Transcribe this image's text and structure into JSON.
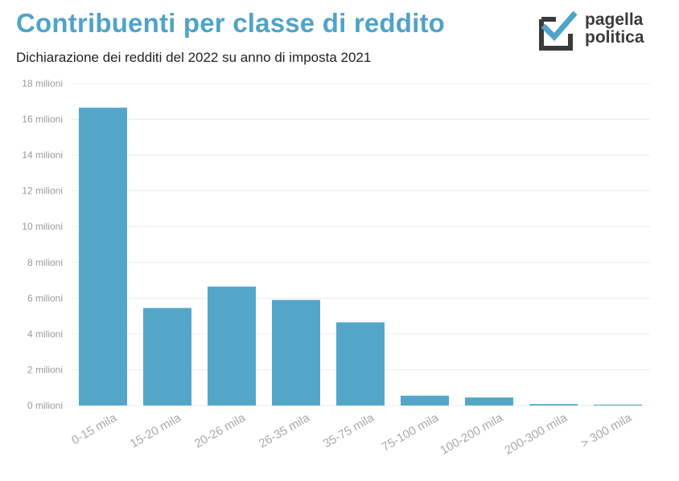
{
  "header": {
    "title": "Contribuenti per classe di reddito",
    "subtitle": "Dichiarazione dei redditi del 2022 su anno di imposta 2021"
  },
  "logo": {
    "icon": "checkbox-check-icon",
    "line1": "pagella",
    "line2": "politica",
    "check_color": "#4fa3c7",
    "box_color": "#3a3a3a"
  },
  "colors": {
    "bar": "#54a6c9",
    "grid": "#ececec"
  },
  "chart_data": {
    "type": "bar",
    "title": "Contribuenti per classe di reddito",
    "subtitle": "Dichiarazione dei redditi del 2022 su anno di imposta 2021",
    "categories": [
      "0-15 mila",
      "15-20 mila",
      "20-26 mila",
      "26-35 mila",
      "35-75 mila",
      "75-100 mila",
      "100-200 mila",
      "200-300 mila",
      "> 300 mila"
    ],
    "values": [
      16.65,
      5.45,
      6.65,
      5.9,
      4.65,
      0.55,
      0.45,
      0.08,
      0.05
    ],
    "ylim": [
      0,
      18
    ],
    "yticks": [
      0,
      2,
      4,
      6,
      8,
      10,
      12,
      14,
      16,
      18
    ],
    "ytick_labels": [
      "0 milioni",
      "2 milioni",
      "4 milioni",
      "6 milioni",
      "8 milioni",
      "10 milioni",
      "12 milioni",
      "14 milioni",
      "16 milioni",
      "18 milioni"
    ],
    "xlabel": "",
    "ylabel": "",
    "grid": true
  }
}
